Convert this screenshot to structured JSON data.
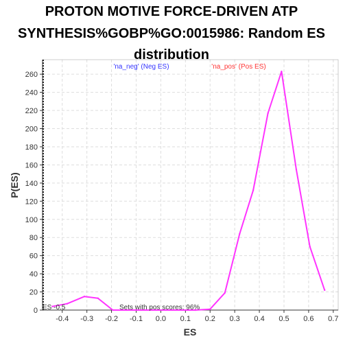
{
  "chart_data": {
    "type": "line",
    "title_lines": [
      "PROTON MOTIVE FORCE-DRIVEN ATP",
      "SYNTHESIS%GOBP%GO:0015986: Random ES",
      "distribution"
    ],
    "xlabel": "ES",
    "ylabel": "P(ES)",
    "xlim": [
      -0.48,
      0.72
    ],
    "ylim": [
      0,
      276
    ],
    "x_ticks": [
      -0.4,
      -0.3,
      -0.2,
      -0.1,
      0.0,
      0.1,
      0.2,
      0.3,
      0.4,
      0.5,
      0.6,
      0.7
    ],
    "x_tick_labels": [
      "-0.4",
      "-0.3",
      "-0.2",
      "-0.1",
      "0.0",
      "0.1",
      "0.2",
      "0.3",
      "0.4",
      "0.5",
      "0.6",
      "0.7"
    ],
    "y_ticks": [
      0,
      20,
      40,
      60,
      80,
      100,
      120,
      140,
      160,
      180,
      200,
      220,
      240,
      260
    ],
    "y_tick_labels": [
      "0",
      "20",
      "40",
      "60",
      "80",
      "100",
      "120",
      "140",
      "160",
      "180",
      "200",
      "220",
      "240",
      "260"
    ],
    "grid": true,
    "series": [
      {
        "color": "#ff33ff",
        "points": [
          {
            "x": -0.44,
            "y": 4
          },
          {
            "x": -0.38,
            "y": 7
          },
          {
            "x": -0.31,
            "y": 15
          },
          {
            "x": -0.255,
            "y": 13
          },
          {
            "x": -0.195,
            "y": 0
          },
          {
            "x": -0.14,
            "y": 0
          },
          {
            "x": 0.14,
            "y": 0
          },
          {
            "x": 0.2,
            "y": 1
          },
          {
            "x": 0.26,
            "y": 19
          },
          {
            "x": 0.32,
            "y": 84
          },
          {
            "x": 0.375,
            "y": 132
          },
          {
            "x": 0.435,
            "y": 217
          },
          {
            "x": 0.49,
            "y": 263
          },
          {
            "x": 0.55,
            "y": 155
          },
          {
            "x": 0.605,
            "y": 70
          },
          {
            "x": 0.665,
            "y": 22
          }
        ]
      }
    ],
    "legend": {
      "neg": {
        "text": "'na_neg' (Neg ES)",
        "color": "#3333ff"
      },
      "pos": {
        "text": "'na_pos' (Pos ES)",
        "color": "#ff3333"
      }
    },
    "annotations": {
      "es_marker": "ES -0.5",
      "pos_scores": "Sets with pos scores: 96%"
    }
  }
}
